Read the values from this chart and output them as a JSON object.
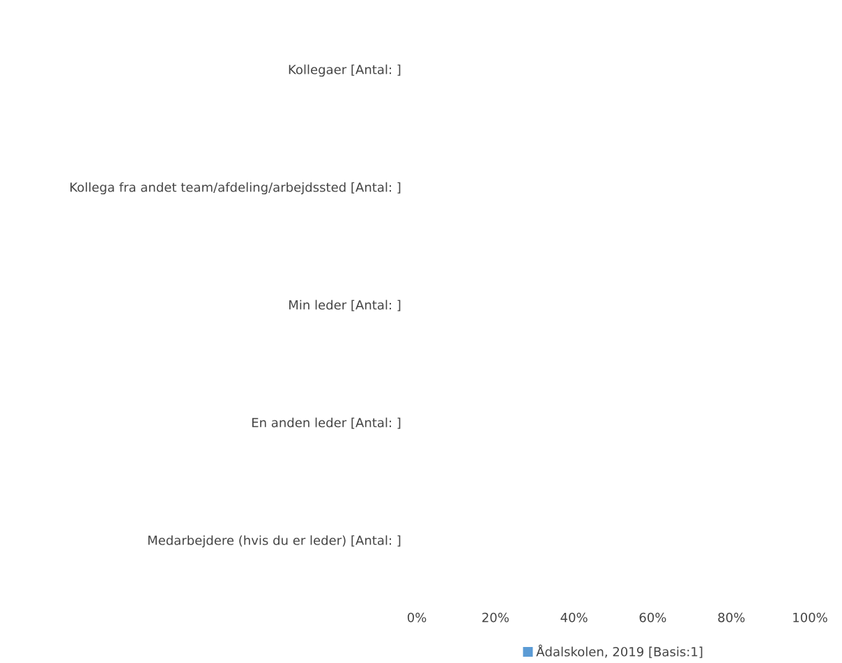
{
  "chart_data": {
    "type": "bar",
    "orientation": "horizontal",
    "categories": [
      "Kollegaer [Antal: ]",
      "Kollega fra andet team/afdeling/arbejdssted [Antal: ]",
      "Min leder [Antal: ]",
      "En anden leder [Antal: ]",
      "Medarbejdere (hvis du er leder) [Antal: ]"
    ],
    "series": [
      {
        "name": "Ådalskolen, 2019 [Basis:1]",
        "color": "#5b9bd5",
        "values": [
          0,
          0,
          0,
          0,
          0
        ]
      }
    ],
    "xlim": [
      0,
      100
    ],
    "xticks": [
      {
        "value": 0,
        "label": "0%"
      },
      {
        "value": 20,
        "label": "20%"
      },
      {
        "value": 40,
        "label": "40%"
      },
      {
        "value": 60,
        "label": "60%"
      },
      {
        "value": 80,
        "label": "80%"
      },
      {
        "value": 100,
        "label": "100%"
      }
    ],
    "grid": false,
    "legend": "bottom"
  }
}
